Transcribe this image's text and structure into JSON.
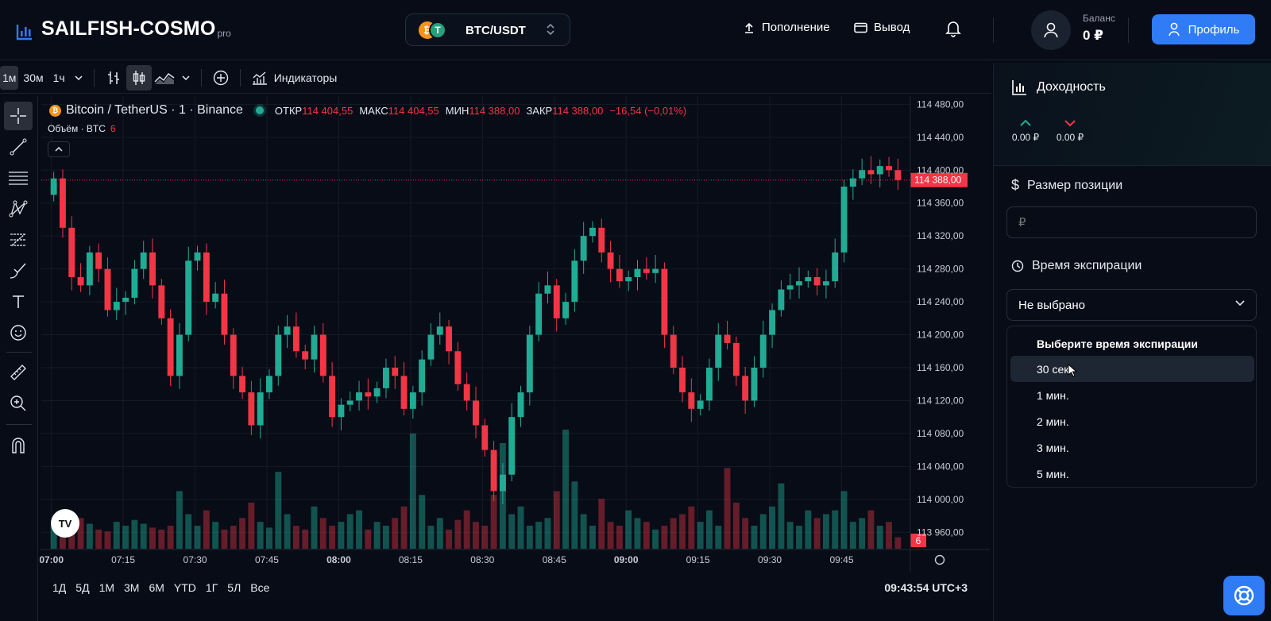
{
  "header": {
    "logo_text": "SAILFISH-COSMO",
    "logo_suffix": "pro",
    "pair": "BTC/USDT",
    "deposit": "Пополнение",
    "withdraw": "Вывод",
    "balance_label": "Баланс",
    "balance_value": "0 ₽",
    "profile": "Профиль"
  },
  "toolbar": {
    "timeframes": [
      "1м",
      "30м",
      "1ч"
    ],
    "active_timeframe": "1м",
    "indicators": "Индикаторы"
  },
  "legend": {
    "symbol": "Bitcoin / TetherUS · 1 · Binance",
    "open_label": "ОТКР",
    "open": "114 404,55",
    "high_label": "МАКС",
    "high": "114 404,55",
    "low_label": "МИН",
    "low": "114 388,00",
    "close_label": "ЗАКР",
    "close": "114 388,00",
    "change": "−16,54 (−0,01%)",
    "volume_label": "Объём · BTC",
    "volume_value": "6"
  },
  "chart_data": {
    "type": "candlestick",
    "title": "Bitcoin / TetherUS · 1 · Binance",
    "y_ticks": [
      "114 480,00",
      "114 440,00",
      "114 400,00",
      "114 360,00",
      "114 320,00",
      "114 280,00",
      "114 240,00",
      "114 200,00",
      "114 160,00",
      "114 120,00",
      "114 080,00",
      "114 040,00",
      "114 000,00",
      "113 960,00"
    ],
    "ylim": [
      113940,
      114490
    ],
    "current_price": 114388,
    "current_price_label": "114 388,00",
    "volume_badge": "6",
    "x_ticks": [
      "07:00",
      "07:15",
      "07:30",
      "07:45",
      "08:00",
      "08:15",
      "08:30",
      "08:45",
      "09:00",
      "09:15",
      "09:30",
      "09:45"
    ],
    "close_path": [
      114390,
      114330,
      114270,
      114260,
      114300,
      114280,
      114230,
      114240,
      114245,
      114280,
      114300,
      114260,
      114220,
      114150,
      114200,
      114290,
      114300,
      114240,
      114250,
      114200,
      114150,
      114130,
      114090,
      114130,
      114150,
      114200,
      114210,
      114180,
      114170,
      114200,
      114150,
      114100,
      114115,
      114120,
      114130,
      114125,
      114135,
      114160,
      114150,
      114110,
      114130,
      114170,
      114200,
      114210,
      114180,
      114140,
      114120,
      114090,
      114060,
      114010,
      114030,
      114100,
      114130,
      114200,
      114250,
      114260,
      114220,
      114240,
      114290,
      114320,
      114330,
      114300,
      114280,
      114265,
      114270,
      114280,
      114275,
      114280,
      114200,
      114160,
      114130,
      114110,
      114120,
      114160,
      114200,
      114190,
      114150,
      114120,
      114160,
      114200,
      114230,
      114255,
      114260,
      114265,
      114270,
      114260,
      114265,
      114300,
      114380,
      114390,
      114400,
      114395,
      114405,
      114400,
      114388
    ],
    "volume": [
      12,
      14,
      11,
      16,
      13,
      10,
      9,
      14,
      12,
      15,
      13,
      11,
      10,
      12,
      30,
      18,
      12,
      20,
      14,
      10,
      12,
      16,
      24,
      14,
      11,
      40,
      18,
      12,
      10,
      22,
      16,
      12,
      14,
      18,
      20,
      10,
      14,
      12,
      16,
      22,
      60,
      28,
      12,
      16,
      10,
      15,
      20,
      14,
      12,
      28,
      55,
      18,
      22,
      12,
      14,
      16,
      30,
      62,
      35,
      18,
      12,
      26,
      14,
      12,
      20,
      16,
      14,
      10,
      12,
      16,
      18,
      22,
      14,
      20,
      12,
      42,
      24,
      16,
      12,
      18,
      22,
      34,
      14,
      12,
      20,
      16,
      18,
      20,
      30,
      14,
      16,
      20,
      12,
      14,
      6
    ]
  },
  "ranges": [
    "1Д",
    "5Д",
    "1М",
    "3М",
    "6М",
    "YTD",
    "1Г",
    "5Л",
    "Все"
  ],
  "clock": "09:43:54 UTC+3",
  "panel": {
    "yield_title": "Доходность",
    "up_value": "0.00 ₽",
    "down_value": "0.00 ₽",
    "position_size_label": "Размер позиции",
    "amount_placeholder": "₽",
    "expiration_label": "Время экспирации",
    "expiration_selected": "Не выбрано",
    "dropdown_header": "Выберите время экспирации",
    "options": [
      "30 сек.",
      "1 мин.",
      "2 мин.",
      "3 мин.",
      "5 мин."
    ]
  },
  "colors": {
    "accent": "#2f7cf6",
    "up": "#22ab94",
    "down": "#f23645",
    "background": "#070c17"
  }
}
